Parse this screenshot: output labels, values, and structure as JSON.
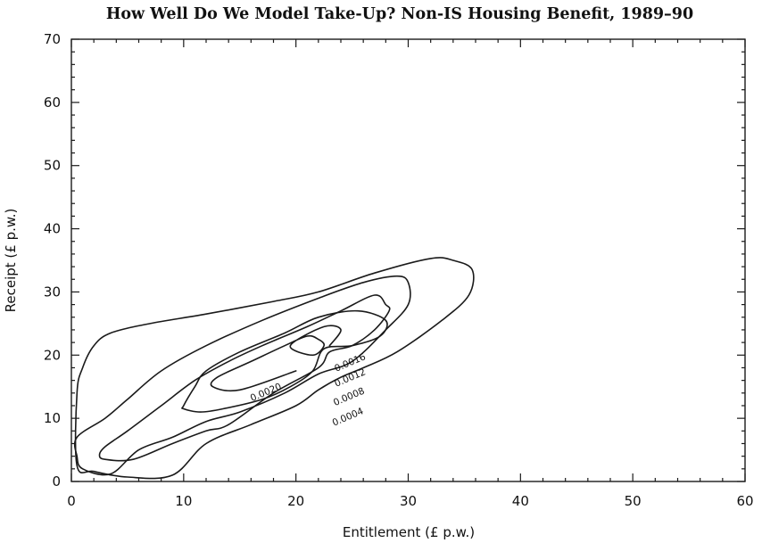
{
  "chart_data": {
    "type": "contour",
    "title": "How Well Do We Model Take-Up? Non-IS Housing Benefit, 1989–90",
    "xlabel": "Entitlement  (£ p.w.)",
    "ylabel": "Receipt  (£ p.w.)",
    "xlim": [
      0,
      60
    ],
    "ylim": [
      0,
      70
    ],
    "xticks": [
      "0",
      "10",
      "20",
      "30",
      "40",
      "50",
      "60"
    ],
    "yticks": [
      "0",
      "10",
      "20",
      "30",
      "40",
      "50",
      "60",
      "70"
    ],
    "grid": false,
    "legend": "none",
    "contours": [
      {
        "level_label": "0.0004",
        "label_pos": [
          24.6,
          10.3
        ],
        "label_angle": -23,
        "points": [
          [
            0.5,
            14
          ],
          [
            1,
            18
          ],
          [
            2,
            21.5
          ],
          [
            3.5,
            23.5
          ],
          [
            7,
            25
          ],
          [
            12,
            26.5
          ],
          [
            18,
            28.5
          ],
          [
            22,
            30
          ],
          [
            27,
            33
          ],
          [
            32,
            35.3
          ],
          [
            34,
            35
          ],
          [
            35.7,
            33.5
          ],
          [
            35.4,
            29.5
          ],
          [
            33,
            25.5
          ],
          [
            29,
            20.5
          ],
          [
            26,
            18
          ],
          [
            24,
            16.5
          ],
          [
            22,
            14.5
          ],
          [
            20,
            12
          ],
          [
            16,
            9
          ],
          [
            12,
            6
          ],
          [
            9,
            1
          ],
          [
            5,
            0.7
          ],
          [
            2,
            1.6
          ],
          [
            0.5,
            2.5
          ]
        ]
      },
      {
        "level_label": "0.0008",
        "label_pos": [
          24.7,
          13.5
        ],
        "label_angle": -23,
        "points": [
          [
            0.5,
            7
          ],
          [
            3,
            10
          ],
          [
            5,
            13
          ],
          [
            8,
            17.5
          ],
          [
            12,
            21.5
          ],
          [
            17,
            25.5
          ],
          [
            22,
            29
          ],
          [
            26,
            31.5
          ],
          [
            29,
            32.5
          ],
          [
            30,
            31.5
          ],
          [
            30,
            28
          ],
          [
            28,
            24
          ],
          [
            25,
            19
          ],
          [
            22,
            17
          ],
          [
            19,
            14
          ],
          [
            15,
            11
          ],
          [
            12,
            9.5
          ],
          [
            9,
            7
          ],
          [
            6,
            5
          ],
          [
            3.5,
            1.2
          ],
          [
            1,
            2
          ],
          [
            0.5,
            4
          ]
        ]
      },
      {
        "level_label": "0.0012",
        "label_pos": [
          24.8,
          16.5
        ],
        "label_angle": -23,
        "points": [
          [
            2.5,
            4.2
          ],
          [
            3,
            5.5
          ],
          [
            5,
            8
          ],
          [
            8,
            12
          ],
          [
            11,
            16
          ],
          [
            14,
            19
          ],
          [
            17,
            21.5
          ],
          [
            21,
            24.5
          ],
          [
            24,
            27
          ],
          [
            27,
            29.5
          ],
          [
            28,
            28
          ],
          [
            28.3,
            27
          ],
          [
            27,
            24
          ],
          [
            25,
            21.5
          ],
          [
            23,
            20.5
          ],
          [
            22,
            18
          ],
          [
            18,
            14
          ],
          [
            14,
            9
          ],
          [
            12,
            8
          ],
          [
            9,
            6
          ],
          [
            5.5,
            3.5
          ],
          [
            3,
            3.5
          ]
        ]
      },
      {
        "level_label": "0.0016",
        "label_pos": [
          24.8,
          18.9
        ],
        "label_angle": -23,
        "points": [
          [
            10,
            12
          ],
          [
            11,
            15
          ],
          [
            12,
            17.5
          ],
          [
            15,
            20.5
          ],
          [
            19,
            23.5
          ],
          [
            22,
            26
          ],
          [
            25.5,
            27
          ],
          [
            28,
            25.5
          ],
          [
            27.5,
            23
          ],
          [
            25,
            21.5
          ],
          [
            22.5,
            21
          ],
          [
            21.5,
            17.5
          ],
          [
            19.5,
            15
          ],
          [
            17,
            13
          ],
          [
            13.5,
            11.5
          ],
          [
            11.5,
            11
          ],
          [
            10,
            11.5
          ]
        ]
      },
      {
        "level_label": "0.0020",
        "label_pos": [
          17.3,
          14.2
        ],
        "label_angle": -23,
        "points": [
          [
            20,
            17.5
          ],
          [
            15,
            14.5
          ],
          [
            12.6,
            15
          ],
          [
            13,
            16.5
          ],
          [
            16,
            19
          ],
          [
            19,
            21.5
          ],
          [
            21,
            23
          ],
          [
            22,
            22.5
          ],
          [
            22.5,
            21.5
          ],
          [
            21.5,
            20
          ],
          [
            19.5,
            21.5
          ],
          [
            22.5,
            24.5
          ],
          [
            24,
            24
          ],
          [
            23,
            21.5
          ]
        ]
      }
    ]
  }
}
